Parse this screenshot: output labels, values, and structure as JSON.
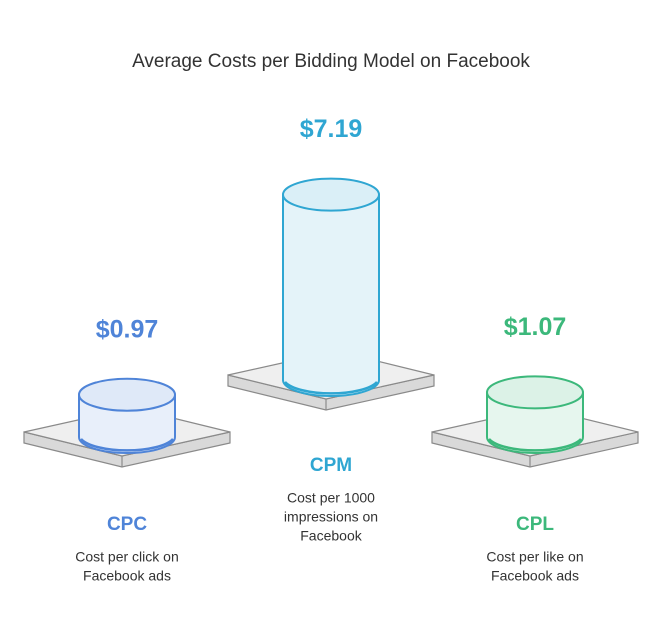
{
  "chart_data": {
    "type": "cylinder",
    "title": "Average Costs per Bidding Model on Facebook",
    "categories": [
      "CPC",
      "CPM",
      "CPL"
    ],
    "values": [
      0.97,
      7.19,
      1.07
    ],
    "value_labels": [
      "$0.97",
      "$7.19",
      "$1.07"
    ],
    "descriptions": [
      [
        "Cost per click on",
        "Facebook ads"
      ],
      [
        "Cost per 1000",
        "impressions on",
        "Facebook"
      ],
      [
        "Cost per like on",
        "Facebook ads"
      ]
    ],
    "colors": [
      "#4f84d8",
      "#2fa6d2",
      "#3cb87b"
    ]
  }
}
